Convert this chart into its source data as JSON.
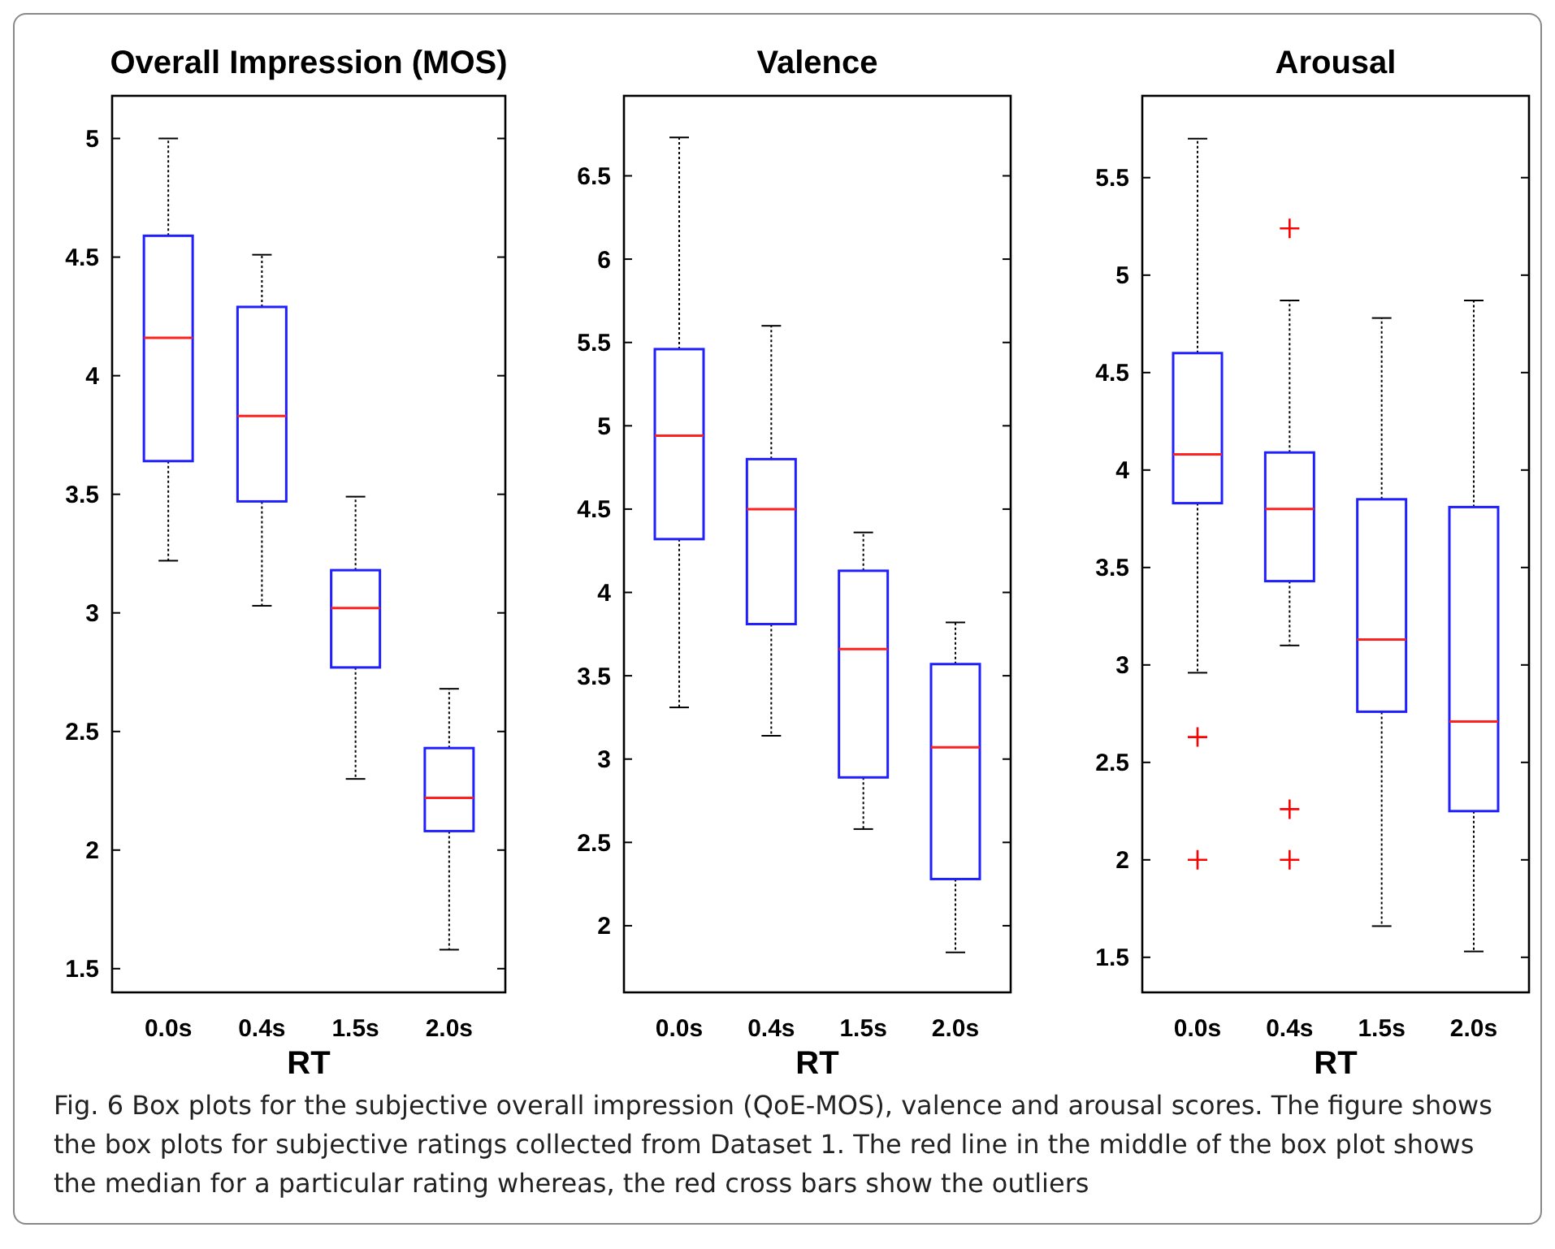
{
  "chart_data": [
    {
      "type": "box",
      "title": "Overall Impression (MOS)",
      "xlabel": "RT",
      "categories": [
        "0.0s",
        "0.4s",
        "1.5s",
        "2.0s"
      ],
      "ylim": [
        1.4,
        5.18
      ],
      "yticks": [
        1.5,
        2,
        2.5,
        3,
        3.5,
        4,
        4.5,
        5
      ],
      "annotations": [
        "Fig. 6  Box plots for the subjective overall impression (QoE-MOS), valence and arousal scores. The figure shows the box plots for subjective ratings collected from Dataset 1. The red line in the middle of the box plot shows the median for a particular rating whereas, the red cross bars show the outliers"
      ],
      "boxes": [
        {
          "low": 3.22,
          "q1": 3.64,
          "median": 4.16,
          "q3": 4.59,
          "high": 5.0
        },
        {
          "low": 3.03,
          "q1": 3.47,
          "median": 3.83,
          "q3": 4.29,
          "high": 4.51
        },
        {
          "low": 2.3,
          "q1": 2.77,
          "median": 3.02,
          "q3": 3.18,
          "high": 3.49
        },
        {
          "low": 1.58,
          "q1": 2.08,
          "median": 2.22,
          "q3": 2.43,
          "high": 2.68
        }
      ]
    },
    {
      "type": "box",
      "title": "Valence",
      "xlabel": "RT",
      "categories": [
        "0.0s",
        "0.4s",
        "1.5s",
        "2.0s"
      ],
      "ylim": [
        1.6,
        6.98
      ],
      "yticks": [
        2,
        2.5,
        3,
        3.5,
        4,
        4.5,
        5,
        5.5,
        6,
        6.5
      ],
      "boxes": [
        {
          "low": 3.31,
          "q1": 4.32,
          "median": 4.94,
          "q3": 5.46,
          "high": 6.73
        },
        {
          "low": 3.14,
          "q1": 3.81,
          "median": 4.5,
          "q3": 4.8,
          "high": 5.6
        },
        {
          "low": 2.58,
          "q1": 2.89,
          "median": 3.66,
          "q3": 4.13,
          "high": 4.36
        },
        {
          "low": 1.84,
          "q1": 2.28,
          "median": 3.07,
          "q3": 3.57,
          "high": 3.82
        }
      ]
    },
    {
      "type": "box",
      "title": "Arousal",
      "xlabel": "RT",
      "categories": [
        "0.0s",
        "0.4s",
        "1.5s",
        "2.0s"
      ],
      "ylim": [
        1.32,
        5.92
      ],
      "yticks": [
        1.5,
        2,
        2.5,
        3,
        3.5,
        4,
        4.5,
        5,
        5.5
      ],
      "marker": "cross",
      "boxes": [
        {
          "low": 2.96,
          "q1": 3.83,
          "median": 4.08,
          "q3": 4.6,
          "high": 5.7,
          "outliers": [
            2.63,
            2.0
          ]
        },
        {
          "low": 3.1,
          "q1": 3.43,
          "median": 3.8,
          "q3": 4.09,
          "high": 4.87,
          "outliers": [
            5.24,
            2.26,
            2.0
          ]
        },
        {
          "low": 1.66,
          "q1": 2.76,
          "median": 3.13,
          "q3": 3.85,
          "high": 4.78
        },
        {
          "low": 1.53,
          "q1": 2.25,
          "median": 2.71,
          "q3": 3.81,
          "high": 4.87
        }
      ]
    }
  ]
}
